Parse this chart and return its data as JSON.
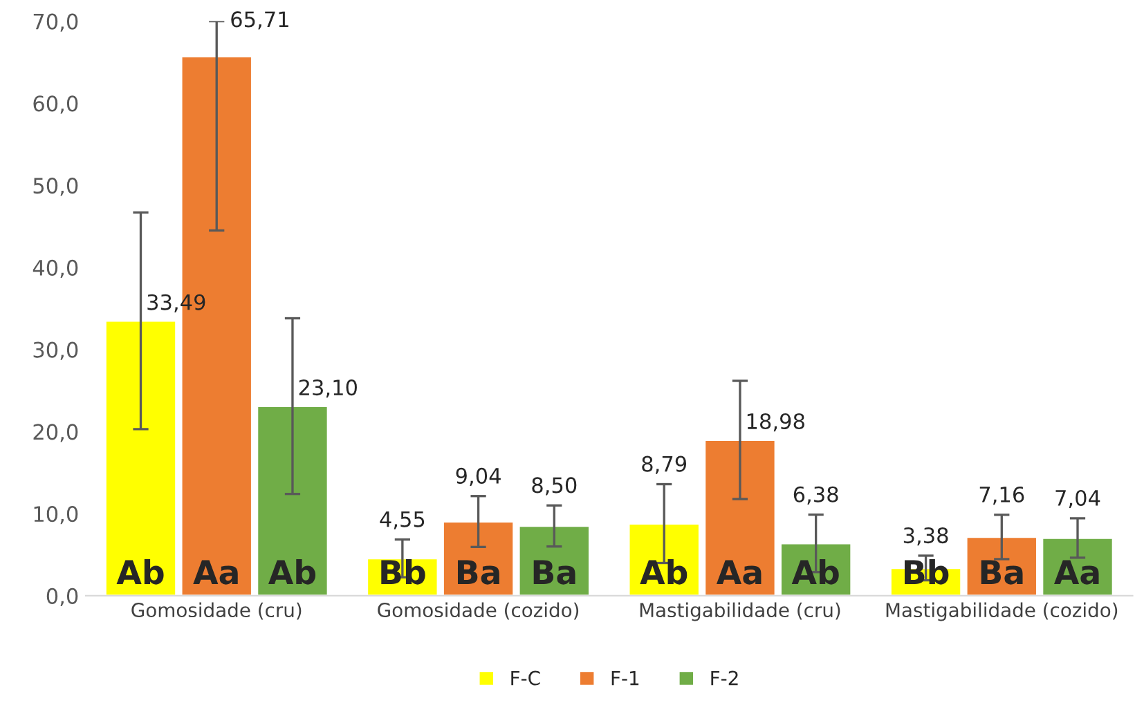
{
  "chart_data": {
    "type": "bar",
    "categories": [
      "Gomosidade (cru)",
      "Gomosidade (cozido)",
      "Mastigabilidade (cru)",
      "Mastigabilidade (cozido)"
    ],
    "series": [
      {
        "name": "F-C",
        "color": "#ffff00",
        "values": [
          33.49,
          4.55,
          8.79,
          3.38
        ],
        "value_labels": [
          "33,49",
          "4,55",
          "8,79",
          "3,38"
        ],
        "errors": [
          13.2,
          2.3,
          4.8,
          1.5
        ]
      },
      {
        "name": "F-1",
        "color": "#ed7d31",
        "values": [
          65.71,
          9.04,
          18.98,
          7.16
        ],
        "value_labels": [
          "65,71",
          "9,04",
          "18,98",
          "7,16"
        ],
        "errors": [
          [
            44.5,
            70.0
          ],
          3.1,
          7.2,
          2.7
        ]
      },
      {
        "name": "F-2",
        "color": "#70ad47",
        "values": [
          23.1,
          8.5,
          6.38,
          7.04
        ],
        "value_labels": [
          "23,10",
          "8,50",
          "6,38",
          "7,04"
        ],
        "errors": [
          10.7,
          2.5,
          3.5,
          2.4
        ]
      }
    ],
    "annotations": [
      "Ab",
      "Bb",
      "Ab",
      "Bb",
      "Aa",
      "Ba",
      "Aa",
      "Ba",
      "Ab",
      "Ba",
      "Ab",
      "Aa"
    ],
    "ylim": [
      0,
      70
    ],
    "yticks": [
      {
        "value": 0,
        "label": "0,0"
      },
      {
        "value": 10,
        "label": "10,0"
      },
      {
        "value": 20,
        "label": "20,0"
      },
      {
        "value": 30,
        "label": "30,0"
      },
      {
        "value": 40,
        "label": "40,0"
      },
      {
        "value": 50,
        "label": "50,0"
      },
      {
        "value": 60,
        "label": "60,0"
      },
      {
        "value": 70,
        "label": "70,0"
      }
    ],
    "grid": false,
    "legend": "bottom"
  }
}
